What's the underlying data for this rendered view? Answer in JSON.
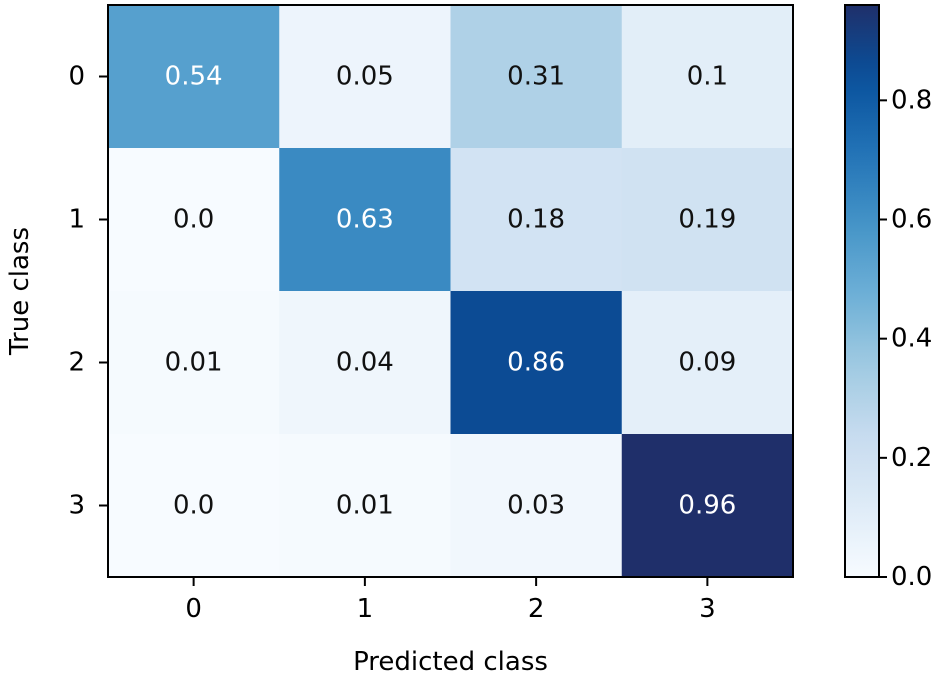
{
  "chart_data": {
    "type": "heatmap",
    "xlabel": "Predicted class",
    "ylabel": "True class",
    "x_categories": [
      "0",
      "1",
      "2",
      "3"
    ],
    "y_categories": [
      "0",
      "1",
      "2",
      "3"
    ],
    "values": [
      [
        0.54,
        0.05,
        0.31,
        0.1
      ],
      [
        0.0,
        0.63,
        0.18,
        0.19
      ],
      [
        0.01,
        0.04,
        0.86,
        0.09
      ],
      [
        0.0,
        0.01,
        0.03,
        0.96
      ]
    ],
    "cell_labels": [
      [
        "0.54",
        "0.05",
        "0.31",
        "0.1"
      ],
      [
        "0.0",
        "0.63",
        "0.18",
        "0.19"
      ],
      [
        "0.01",
        "0.04",
        "0.86",
        "0.09"
      ],
      [
        "0.0",
        "0.01",
        "0.03",
        "0.96"
      ]
    ],
    "colormap": "Blues",
    "colorbar": {
      "range": [
        0.0,
        0.96
      ],
      "ticks": [
        0.0,
        0.2,
        0.4,
        0.6,
        0.8
      ],
      "tick_labels": [
        "0.0",
        "0.2",
        "0.4",
        "0.6",
        "0.8"
      ]
    },
    "colors": {
      "low": "#f7fbff",
      "high": "#1f2f6a",
      "light_text": "#ffffff",
      "dark_text": "#111111"
    }
  }
}
